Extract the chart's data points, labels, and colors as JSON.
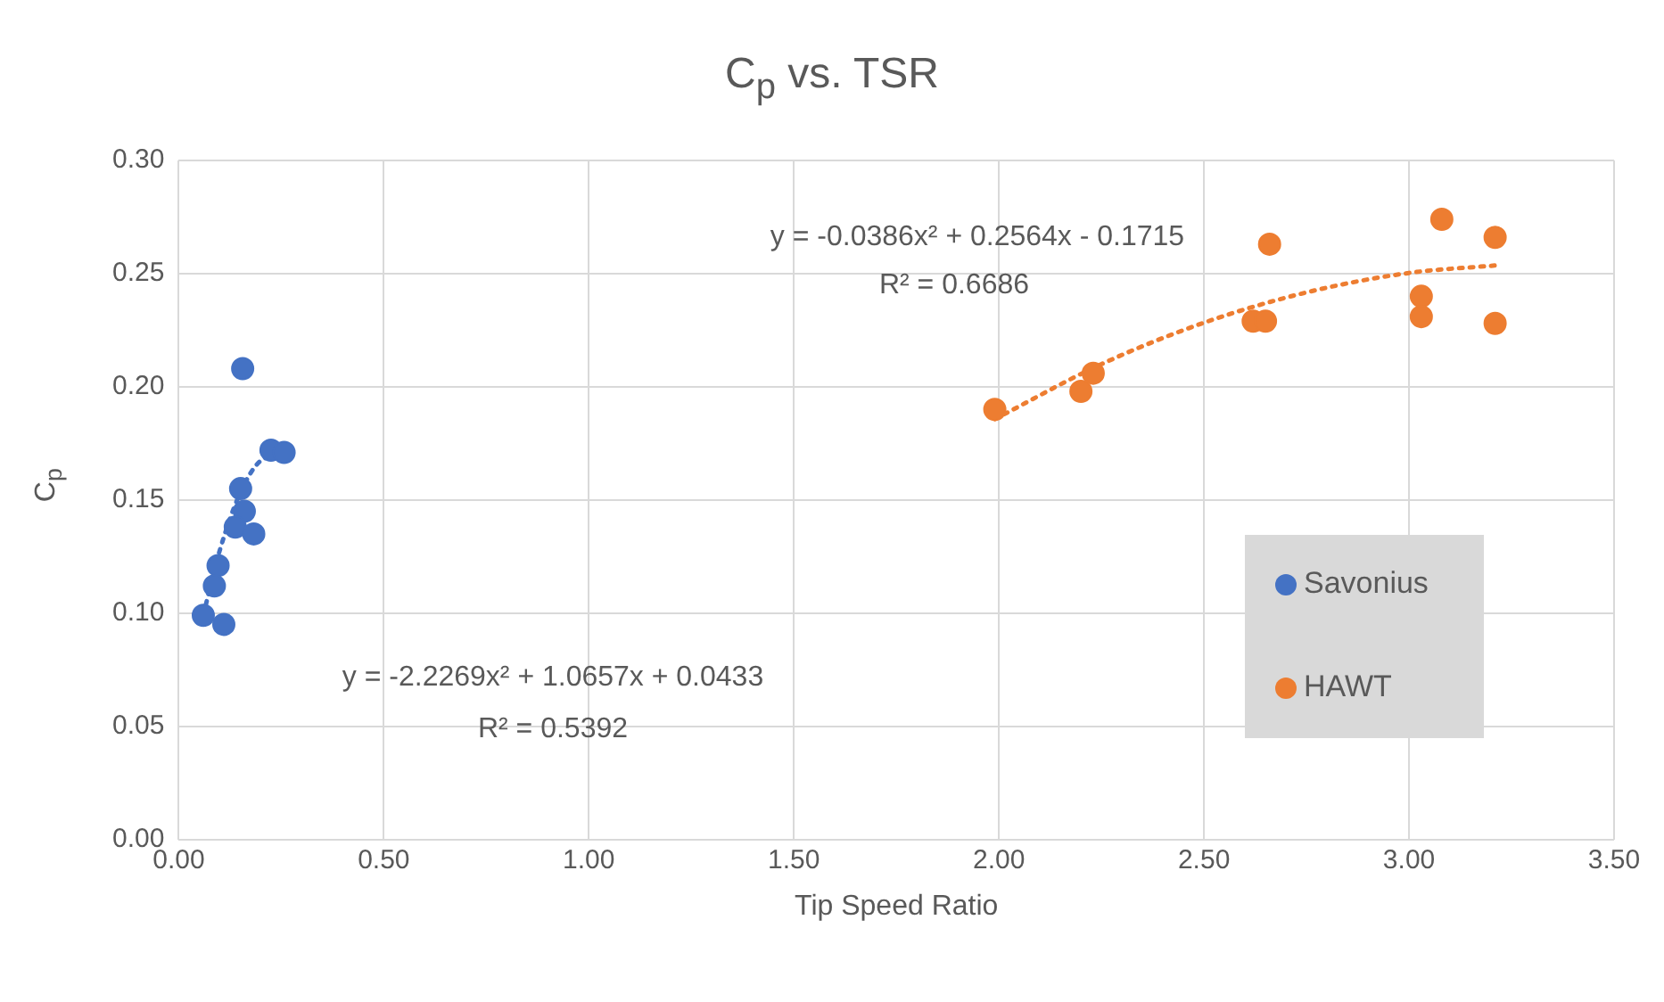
{
  "chart_data": {
    "type": "scatter",
    "title": "C$_{p}$ vs. TSR",
    "xlabel": "Tip Speed Ratio",
    "ylabel": "C$_{p}$",
    "xlim": [
      0,
      3.5
    ],
    "xticks": [
      {
        "value": 0,
        "label": "0.00"
      },
      {
        "value": 0.5,
        "label": "0.50"
      },
      {
        "value": 1,
        "label": "1.00"
      },
      {
        "value": 1.5,
        "label": "1.50"
      },
      {
        "value": 2,
        "label": "2.00"
      },
      {
        "value": 2.5,
        "label": "2.50"
      },
      {
        "value": 3,
        "label": "3.00"
      },
      {
        "value": 3.5,
        "label": "3.50"
      }
    ],
    "ylim": [
      0,
      0.3
    ],
    "yticks": [
      {
        "value": 0,
        "label": "0.00"
      },
      {
        "value": 0.05,
        "label": "0.05"
      },
      {
        "value": 0.1,
        "label": "0.10"
      },
      {
        "value": 0.15,
        "label": "0.15"
      },
      {
        "value": 0.2,
        "label": "0.20"
      },
      {
        "value": 0.25,
        "label": "0.25"
      },
      {
        "value": 0.3,
        "label": "0.30"
      }
    ],
    "grid": true,
    "legend": "right",
    "marker": "circle",
    "series": [
      {
        "name": "Savonius",
        "color": "#4472c4",
        "x": [
          0.156,
          0.225,
          0.257,
          0.151,
          0.16,
          0.138,
          0.183,
          0.096,
          0.087,
          0.06,
          0.11
        ],
        "values": [
          0.208,
          0.172,
          0.171,
          0.155,
          0.145,
          0.138,
          0.135,
          0.121,
          0.112,
          0.099,
          0.095
        ]
      },
      {
        "name": "HAWT",
        "color": "#ed7d31",
        "x": [
          1.99,
          2.2,
          2.23,
          2.66,
          2.62,
          2.65,
          3.08,
          3.03,
          3.03,
          3.21,
          3.21
        ],
        "values": [
          0.19,
          0.198,
          0.206,
          0.263,
          0.229,
          0.229,
          0.274,
          0.24,
          0.231,
          0.266,
          0.228
        ]
      },
      {
        "type": "line",
        "color": "#4472c4",
        "line_style": "dotted",
        "marker": "none",
        "x": [
          0.06,
          0.1,
          0.15,
          0.2,
          0.257
        ],
        "values": [
          0.0992,
          0.1276,
          0.1531,
          0.1673,
          0.1701
        ]
      },
      {
        "type": "line",
        "color": "#ed7d31",
        "line_style": "dotted",
        "marker": "none",
        "x": [
          1.99,
          2.25,
          2.5,
          2.75,
          3,
          3.21
        ],
        "values": [
          0.1857,
          0.21,
          0.2283,
          0.2417,
          0.2503,
          0.2536
        ]
      }
    ],
    "annotations": [
      "y = -0.0386x² + 0.2564x - 0.1715",
      "R² = 0.6686",
      "y = -2.2269x² + 1.0657x + 0.0433",
      "R² = 0.5392"
    ]
  }
}
